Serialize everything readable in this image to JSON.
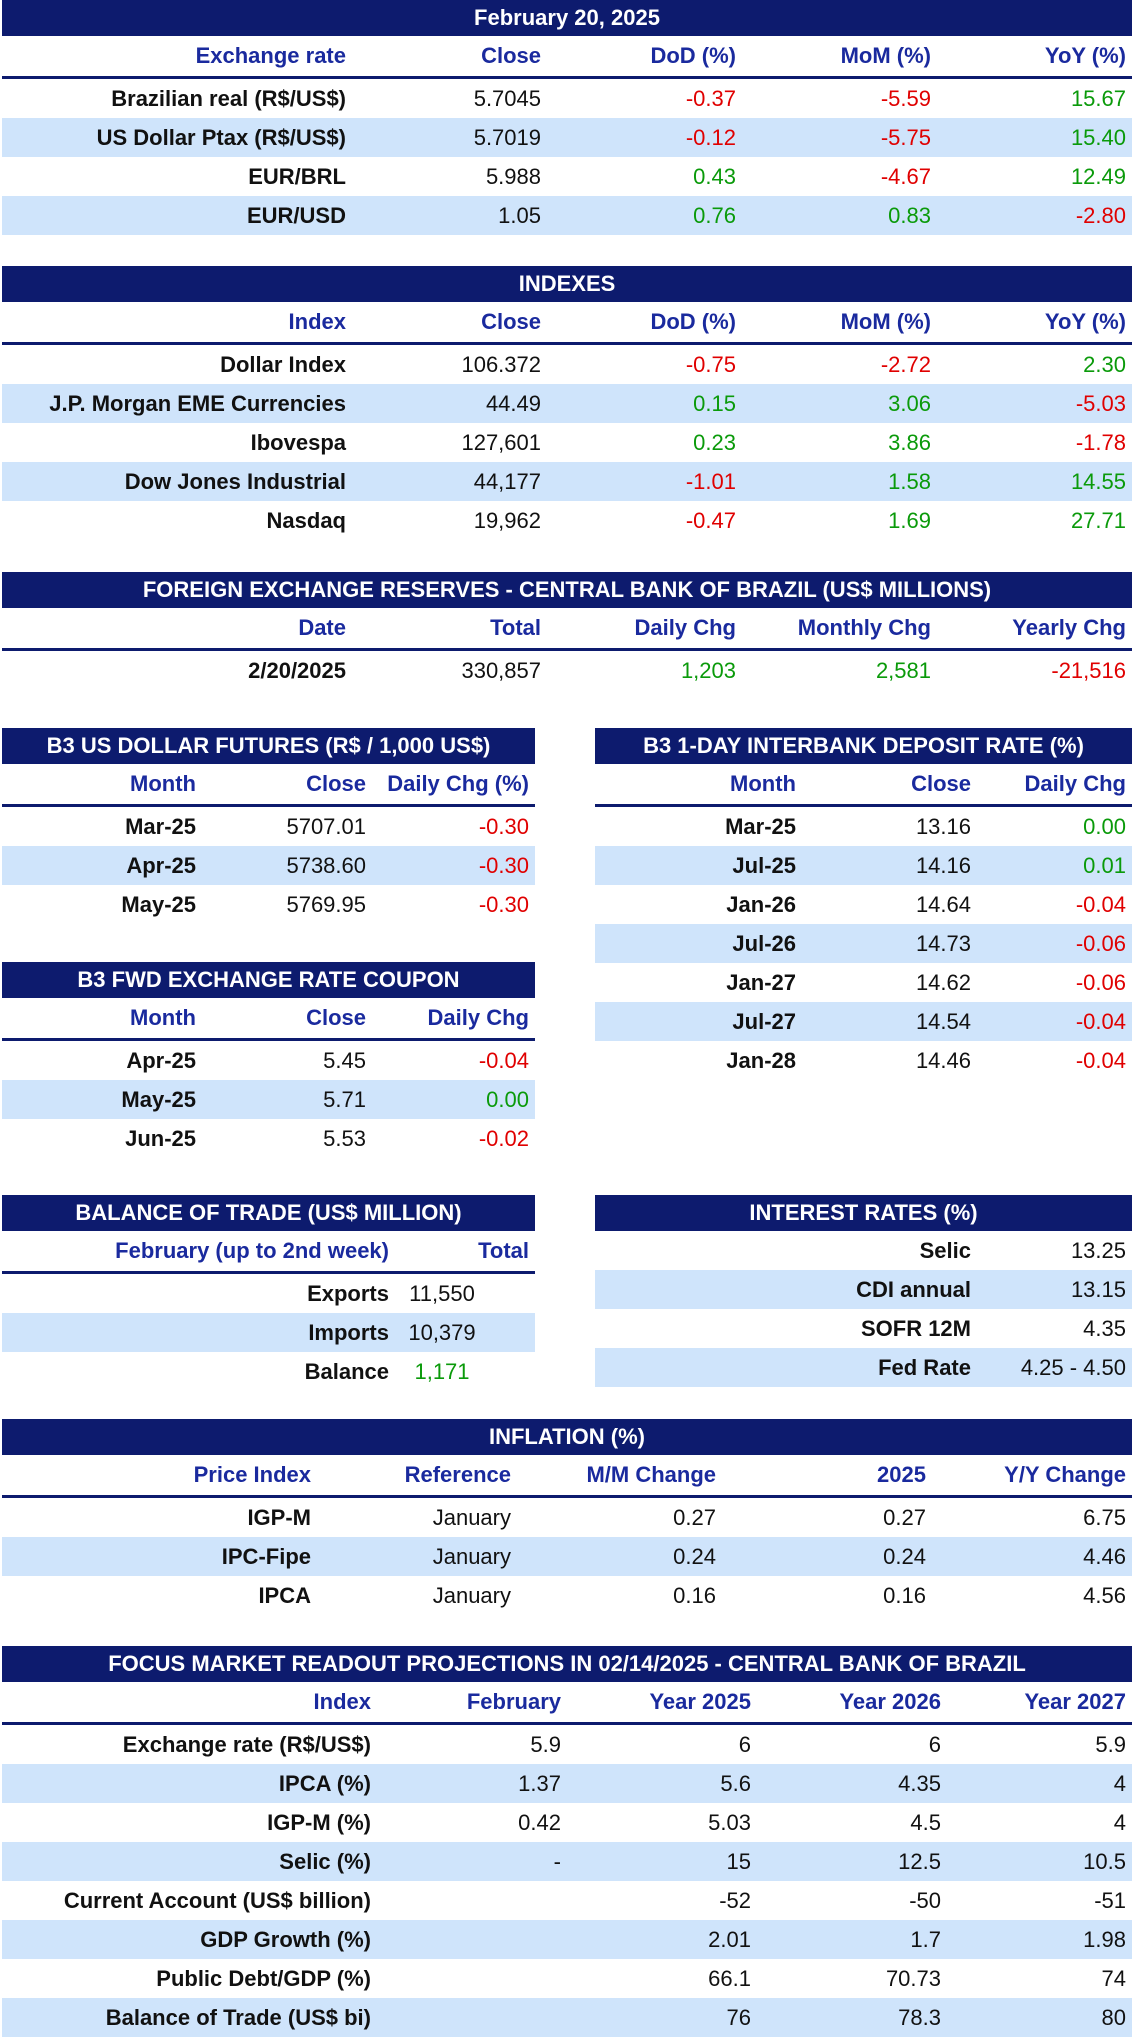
{
  "exchange": {
    "title": "February 20, 2025",
    "headers": [
      "Exchange rate",
      "Close",
      "DoD (%)",
      "MoM (%)",
      "YoY (%)"
    ],
    "rows": [
      {
        "name": "Brazilian real (R$/US$)",
        "close": "5.7045",
        "dod": "-0.37",
        "mom": "-5.59",
        "yoy": "15.67"
      },
      {
        "name": "US Dollar Ptax (R$/US$)",
        "close": "5.7019",
        "dod": "-0.12",
        "mom": "-5.75",
        "yoy": "15.40"
      },
      {
        "name": "EUR/BRL",
        "close": "5.988",
        "dod": "0.43",
        "mom": "-4.67",
        "yoy": "12.49"
      },
      {
        "name": "EUR/USD",
        "close": "1.05",
        "dod": "0.76",
        "mom": "0.83",
        "yoy": "-2.80"
      }
    ]
  },
  "indexes": {
    "title": "INDEXES",
    "headers": [
      "Index",
      "Close",
      "DoD (%)",
      "MoM (%)",
      "YoY (%)"
    ],
    "rows": [
      {
        "name": "Dollar Index",
        "close": "106.372",
        "dod": "-0.75",
        "mom": "-2.72",
        "yoy": "2.30"
      },
      {
        "name": "J.P. Morgan EME Currencies",
        "close": "44.49",
        "dod": "0.15",
        "mom": "3.06",
        "yoy": "-5.03"
      },
      {
        "name": "Ibovespa",
        "close": "127,601",
        "dod": "0.23",
        "mom": "3.86",
        "yoy": "-1.78"
      },
      {
        "name": "Dow Jones Industrial",
        "close": "44,177",
        "dod": "-1.01",
        "mom": "1.58",
        "yoy": "14.55"
      },
      {
        "name": "Nasdaq",
        "close": "19,962",
        "dod": "-0.47",
        "mom": "1.69",
        "yoy": "27.71"
      }
    ]
  },
  "reserves": {
    "title": "FOREIGN EXCHANGE RESERVES - CENTRAL BANK OF BRAZIL (US$ MILLIONS)",
    "headers": [
      "Date",
      "Total",
      "Daily Chg",
      "Monthly Chg",
      "Yearly Chg"
    ],
    "rows": [
      {
        "date": "2/20/2025",
        "total": "330,857",
        "daily": "1,203",
        "monthly": "2,581",
        "yearly": "-21,516"
      }
    ]
  },
  "futures": {
    "title": "B3 US DOLLAR FUTURES (R$ / 1,000 US$)",
    "headers": [
      "Month",
      "Close",
      "Daily Chg (%)"
    ],
    "rows": [
      {
        "month": "Mar-25",
        "close": "5707.01",
        "chg": "-0.30"
      },
      {
        "month": "Apr-25",
        "close": "5738.60",
        "chg": "-0.30"
      },
      {
        "month": "May-25",
        "close": "5769.95",
        "chg": "-0.30"
      }
    ]
  },
  "interbank": {
    "title": "B3 1-DAY INTERBANK DEPOSIT RATE (%)",
    "headers": [
      "Month",
      "Close",
      "Daily Chg"
    ],
    "rows": [
      {
        "month": "Mar-25",
        "close": "13.16",
        "chg": "0.00"
      },
      {
        "month": "Jul-25",
        "close": "14.16",
        "chg": "0.01"
      },
      {
        "month": "Jan-26",
        "close": "14.64",
        "chg": "-0.04"
      },
      {
        "month": "Jul-26",
        "close": "14.73",
        "chg": "-0.06"
      },
      {
        "month": "Jan-27",
        "close": "14.62",
        "chg": "-0.06"
      },
      {
        "month": "Jul-27",
        "close": "14.54",
        "chg": "-0.04"
      },
      {
        "month": "Jan-28",
        "close": "14.46",
        "chg": "-0.04"
      }
    ]
  },
  "coupon": {
    "title": "B3 FWD EXCHANGE RATE COUPON",
    "headers": [
      "Month",
      "Close",
      "Daily Chg"
    ],
    "rows": [
      {
        "month": "Apr-25",
        "close": "5.45",
        "chg": "-0.04"
      },
      {
        "month": "May-25",
        "close": "5.71",
        "chg": "0.00"
      },
      {
        "month": "Jun-25",
        "close": "5.53",
        "chg": "-0.02"
      }
    ]
  },
  "trade": {
    "title": "BALANCE OF TRADE (US$ MILLION)",
    "headers": [
      "February (up to 2nd week)",
      "Total"
    ],
    "rows": [
      {
        "name": "Exports",
        "total": "11,550"
      },
      {
        "name": "Imports",
        "total": "10,379"
      },
      {
        "name": "Balance",
        "total": "1,171"
      }
    ]
  },
  "rates": {
    "title": "INTEREST RATES (%)",
    "rows": [
      {
        "name": "Selic",
        "value": "13.25"
      },
      {
        "name": "CDI annual",
        "value": "13.15"
      },
      {
        "name": "SOFR 12M",
        "value": "4.35"
      },
      {
        "name": "Fed Rate",
        "value": "4.25 - 4.50"
      }
    ]
  },
  "inflation": {
    "title": "INFLATION (%)",
    "headers": [
      "Price Index",
      "Reference",
      "M/M Change",
      "2025",
      "Y/Y Change"
    ],
    "rows": [
      {
        "name": "IGP-M",
        "ref": "January",
        "mm": "0.27",
        "ytd": "0.27",
        "yy": "6.75"
      },
      {
        "name": "IPC-Fipe",
        "ref": "January",
        "mm": "0.24",
        "ytd": "0.24",
        "yy": "4.46"
      },
      {
        "name": "IPCA",
        "ref": "January",
        "mm": "0.16",
        "ytd": "0.16",
        "yy": "4.56"
      }
    ]
  },
  "focus": {
    "title": "FOCUS MARKET READOUT PROJECTIONS IN 02/14/2025 - CENTRAL BANK OF BRAZIL",
    "headers": [
      "Index",
      "February",
      "Year 2025",
      "Year 2026",
      "Year 2027"
    ],
    "rows": [
      {
        "name": "Exchange rate (R$/US$)",
        "feb": "5.9",
        "y25": "6",
        "y26": "6",
        "y27": "5.9"
      },
      {
        "name": "IPCA (%)",
        "feb": "1.37",
        "y25": "5.6",
        "y26": "4.35",
        "y27": "4"
      },
      {
        "name": "IGP-M (%)",
        "feb": "0.42",
        "y25": "5.03",
        "y26": "4.5",
        "y27": "4"
      },
      {
        "name": "Selic (%)",
        "feb": "-",
        "y25": "15",
        "y26": "12.5",
        "y27": "10.5"
      },
      {
        "name": "Current Account (US$ billion)",
        "feb": "",
        "y25": "-52",
        "y26": "-50",
        "y27": "-51"
      },
      {
        "name": "GDP Growth (%)",
        "feb": "",
        "y25": "2.01",
        "y26": "1.7",
        "y27": "1.98"
      },
      {
        "name": "Public Debt/GDP (%)",
        "feb": "",
        "y25": "66.1",
        "y26": "70.73",
        "y27": "74"
      },
      {
        "name": "Balance of Trade (US$ bi)",
        "feb": "",
        "y25": "76",
        "y26": "78.3",
        "y27": "80"
      }
    ]
  },
  "colors": {
    "header_bar": "#0d1b6e",
    "header_text": "#1a2a9e",
    "row_alt": "#cfe4fb",
    "negative": "#e00000",
    "positive": "#0a9a0a"
  }
}
